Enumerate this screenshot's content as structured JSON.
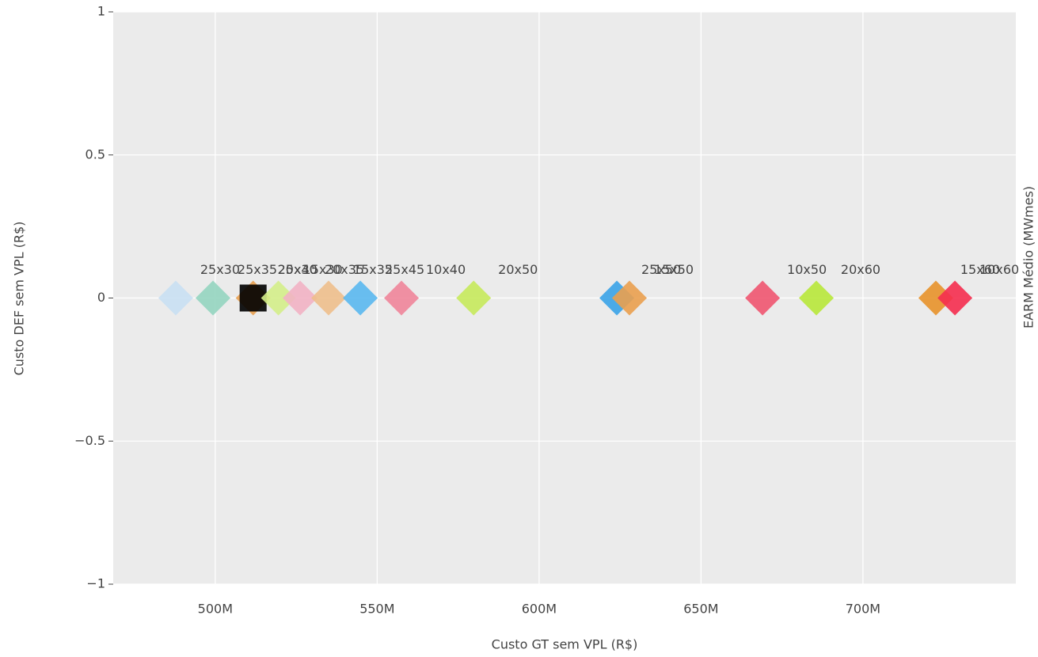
{
  "chart_data": {
    "type": "scatter",
    "x_label": "Custo GT sem VPL (R$)",
    "y_label": "Custo DEF sem VPL (R$)",
    "y2_label": "EARM Médio (MWmes)",
    "x": [
      487800000,
      499300000,
      511700000,
      511700000,
      519500000,
      526200000,
      535000000,
      544800000,
      557500000,
      579800000,
      624000000,
      627900000,
      669000000,
      685600000,
      722500000,
      728400000
    ],
    "values": [
      0,
      0,
      0,
      0,
      0,
      0,
      0,
      0,
      0,
      0,
      0,
      0,
      0,
      0,
      0,
      0
    ],
    "labels": [
      "25x30",
      "25x35",
      "20x30",
      "25x40",
      "15x30",
      "20x35",
      "15x35",
      "25x45",
      "10x40",
      "20x50",
      "25x50",
      "15x50",
      "10x50",
      "20x60",
      "15x60",
      "10x60"
    ],
    "colors": [
      "#c9e0f3",
      "#95d5c0",
      "#e8a050",
      "#000000",
      "#d4ee8a",
      "#f2b3c4",
      "#eebf8c",
      "#5ab8ef",
      "#f0859a",
      "#c6ea5c",
      "#3aa3e8",
      "#eaa04f",
      "#ef5570",
      "#b8e83a",
      "#e8922a",
      "#f52e4f"
    ],
    "symbols": [
      "diamond",
      "diamond",
      "diamond",
      "square",
      "diamond",
      "diamond",
      "diamond",
      "diamond",
      "diamond",
      "diamond",
      "diamond",
      "diamond",
      "diamond",
      "diamond",
      "diamond",
      "diamond"
    ],
    "xlim": [
      468500000,
      747200000
    ],
    "xticks": [
      {
        "value": 500000000,
        "label": "500M"
      },
      {
        "value": 550000000,
        "label": "550M"
      },
      {
        "value": 600000000,
        "label": "600M"
      },
      {
        "value": 650000000,
        "label": "650M"
      },
      {
        "value": 700000000,
        "label": "700M"
      }
    ],
    "ylim": [
      -1,
      1
    ],
    "yticks": [
      {
        "value": -1,
        "label": "−1"
      },
      {
        "value": -0.5,
        "label": "−0.5"
      },
      0,
      0.5,
      1
    ],
    "grid": true
  }
}
